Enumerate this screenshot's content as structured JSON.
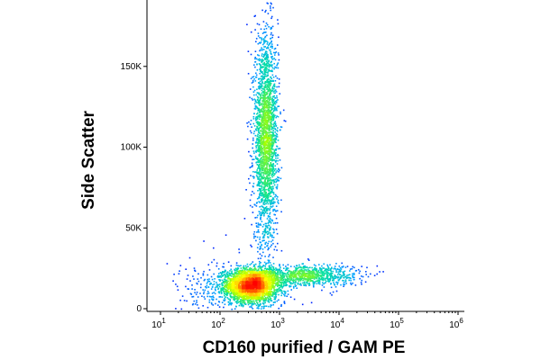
{
  "chart_data": {
    "type": "scatter",
    "subtype": "density-dot-plot",
    "title": "",
    "xlabel": "CD160 purified / GAM PE",
    "ylabel": "Side Scatter",
    "x_scale": "log",
    "xlim": [
      10,
      1000000
    ],
    "ylim": [
      0,
      190000
    ],
    "x_ticks": [
      {
        "value": 10,
        "base": "10",
        "exp": "1"
      },
      {
        "value": 100,
        "base": "10",
        "exp": "2"
      },
      {
        "value": 1000,
        "base": "10",
        "exp": "3"
      },
      {
        "value": 10000,
        "base": "10",
        "exp": "4"
      },
      {
        "value": 100000,
        "base": "10",
        "exp": "5"
      },
      {
        "value": 1000000,
        "base": "10",
        "exp": "6"
      }
    ],
    "y_ticks": [
      {
        "value": 0,
        "label": "0"
      },
      {
        "value": 50000,
        "label": "50K"
      },
      {
        "value": 100000,
        "label": "100K"
      },
      {
        "value": 150000,
        "label": "150K"
      }
    ],
    "grid": false,
    "legend": "none",
    "colormap": [
      "#0000ff",
      "#00a8ff",
      "#00e0a0",
      "#a8ff00",
      "#ffff00",
      "#ff8c00",
      "#ff0000"
    ],
    "populations": [
      {
        "x_center": 330,
        "y_center": 15000,
        "x_spread_decades": 0.22,
        "y_spread": 5000,
        "count": 2600
      },
      {
        "x_center": 580,
        "y_center": 105000,
        "x_spread_decades": 0.1,
        "y_spread": 33000,
        "count": 2400
      },
      {
        "x_center": 2500,
        "y_center": 21000,
        "x_spread_decades": 0.45,
        "y_spread": 3200,
        "count": 900
      },
      {
        "x_center": 200,
        "y_center": 12000,
        "x_spread_decades": 0.5,
        "y_spread": 9000,
        "count": 500
      }
    ]
  }
}
